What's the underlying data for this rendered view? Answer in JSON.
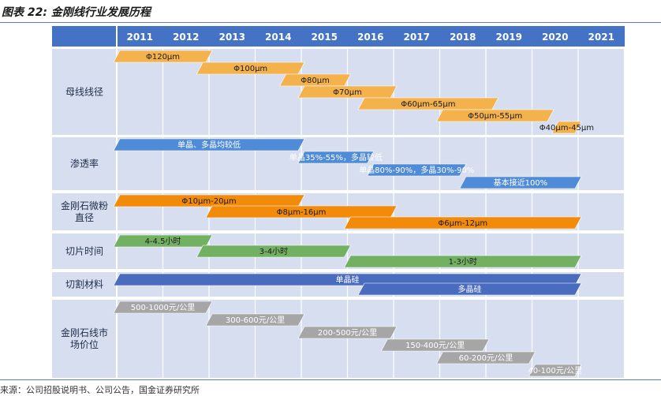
{
  "figure": {
    "title": "图表 22:  金刚线行业发展历程",
    "source": "来源：公司招股说明书、公司公告，国金证券研究所"
  },
  "colors": {
    "header": "#4472c4",
    "row_band": "#d6def0",
    "orange_light": "#f4b24d",
    "orange_dark": "#f28a0a",
    "blue": "#4f8bd6",
    "green": "#72b062",
    "navy": "#4a6cbf",
    "gray": "#a6a6a6"
  },
  "chart_data": {
    "type": "timeline",
    "years": [
      "2011",
      "2012",
      "2013",
      "2014",
      "2015",
      "2016",
      "2017",
      "2018",
      "2019",
      "2020",
      "2021"
    ],
    "rows": [
      {
        "label": [
          "母线线径"
        ],
        "color": "orange_light",
        "text_color": "#1a1a1a",
        "bars": [
          {
            "label": "Φ120μm",
            "start": 2011.0,
            "end": 2013.0
          },
          {
            "label": "Φ100μm",
            "start": 2012.8,
            "end": 2015.0
          },
          {
            "label": "Φ80μm",
            "start": 2014.6,
            "end": 2016.0
          },
          {
            "label": "Φ70μm",
            "start": 2015.0,
            "end": 2017.0
          },
          {
            "label": "Φ60μm-65μm",
            "start": 2016.3,
            "end": 2019.2
          },
          {
            "label": "Φ50μm-55μm",
            "start": 2018.0,
            "end": 2020.4
          },
          {
            "label": "Φ40μm-45μm",
            "start": 2020.5,
            "end": 2021.0
          }
        ]
      },
      {
        "label": [
          "渗透率"
        ],
        "color": "blue",
        "text_color": "#ffffff",
        "bars": [
          {
            "label": "单晶、多晶均较低",
            "start": 2011.0,
            "end": 2015.0
          },
          {
            "label": "单晶35%-55%，多晶较低",
            "start": 2015.0,
            "end": 2016.5
          },
          {
            "label": "单晶80%-90%，多晶30%-90%",
            "start": 2016.5,
            "end": 2018.5
          },
          {
            "label": "基本接近100%",
            "start": 2018.5,
            "end": 2021.0
          }
        ]
      },
      {
        "label": [
          "金刚石微粉",
          "直径"
        ],
        "color": "orange_dark",
        "text_color": "#1a1a1a",
        "bars": [
          {
            "label": "Φ10μm-20μm",
            "start": 2011.0,
            "end": 2015.0
          },
          {
            "label": "Φ8μm-16μm",
            "start": 2013.0,
            "end": 2017.0
          },
          {
            "label": "Φ6μm-12μm",
            "start": 2016.0,
            "end": 2021.0
          }
        ]
      },
      {
        "label": [
          "切片时间"
        ],
        "color": "green",
        "text_color": "#1a1a1a",
        "bars": [
          {
            "label": "4-4.5小时",
            "start": 2011.0,
            "end": 2013.0
          },
          {
            "label": "3-4小时",
            "start": 2012.8,
            "end": 2016.0
          },
          {
            "label": "1-3小时",
            "start": 2016.0,
            "end": 2021.0
          }
        ]
      },
      {
        "label": [
          "切割材料"
        ],
        "color": "navy",
        "text_color": "#ffffff",
        "bars": [
          {
            "label": "单晶硅",
            "start": 2011.0,
            "end": 2021.0
          },
          {
            "label": "多晶硅",
            "start": 2016.3,
            "end": 2021.0
          }
        ]
      },
      {
        "label": [
          "金刚石线市",
          "场价位"
        ],
        "color": "gray",
        "text_color": "#ffffff",
        "bars": [
          {
            "label": "500-1000元/公里",
            "start": 2011.0,
            "end": 2013.0
          },
          {
            "label": "300-600元/公里",
            "start": 2013.0,
            "end": 2015.0
          },
          {
            "label": "200-500元/公里",
            "start": 2015.0,
            "end": 2017.0
          },
          {
            "label": "150-400元/公里",
            "start": 2016.8,
            "end": 2019.0
          },
          {
            "label": "60-200元/公里",
            "start": 2018.0,
            "end": 2020.0
          },
          {
            "label": "40-100元/公里",
            "start": 2020.0,
            "end": 2021.0
          }
        ]
      }
    ]
  }
}
